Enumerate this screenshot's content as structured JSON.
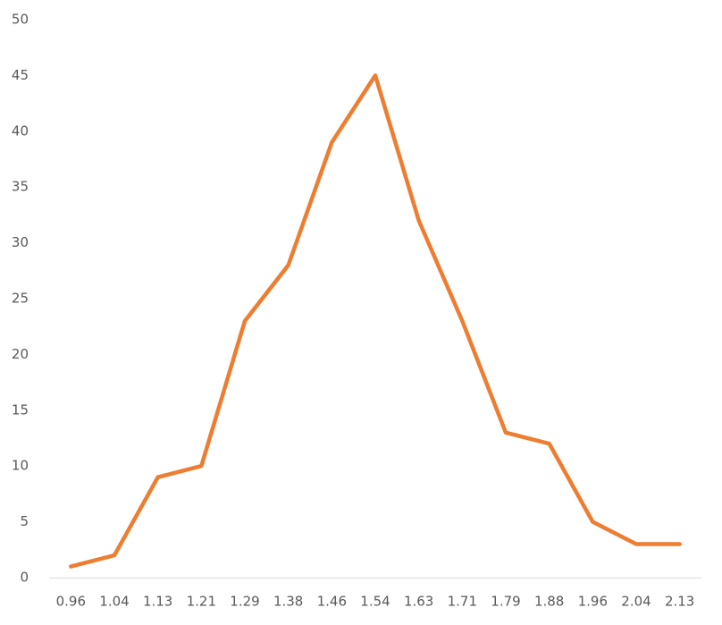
{
  "chart_data": {
    "type": "line",
    "categories": [
      "0.96",
      "1.04",
      "1.13",
      "1.21",
      "1.29",
      "1.38",
      "1.46",
      "1.54",
      "1.63",
      "1.71",
      "1.79",
      "1.88",
      "1.96",
      "2.04",
      "2.13"
    ],
    "values": [
      1,
      2,
      9,
      10,
      23,
      28,
      39,
      45,
      32,
      23,
      13,
      12,
      5,
      3,
      3
    ],
    "color": "#ed7d31",
    "ylim": [
      0,
      50
    ],
    "yticks": [
      0,
      5,
      10,
      15,
      20,
      25,
      30,
      35,
      40,
      45,
      50
    ],
    "grid": false
  }
}
